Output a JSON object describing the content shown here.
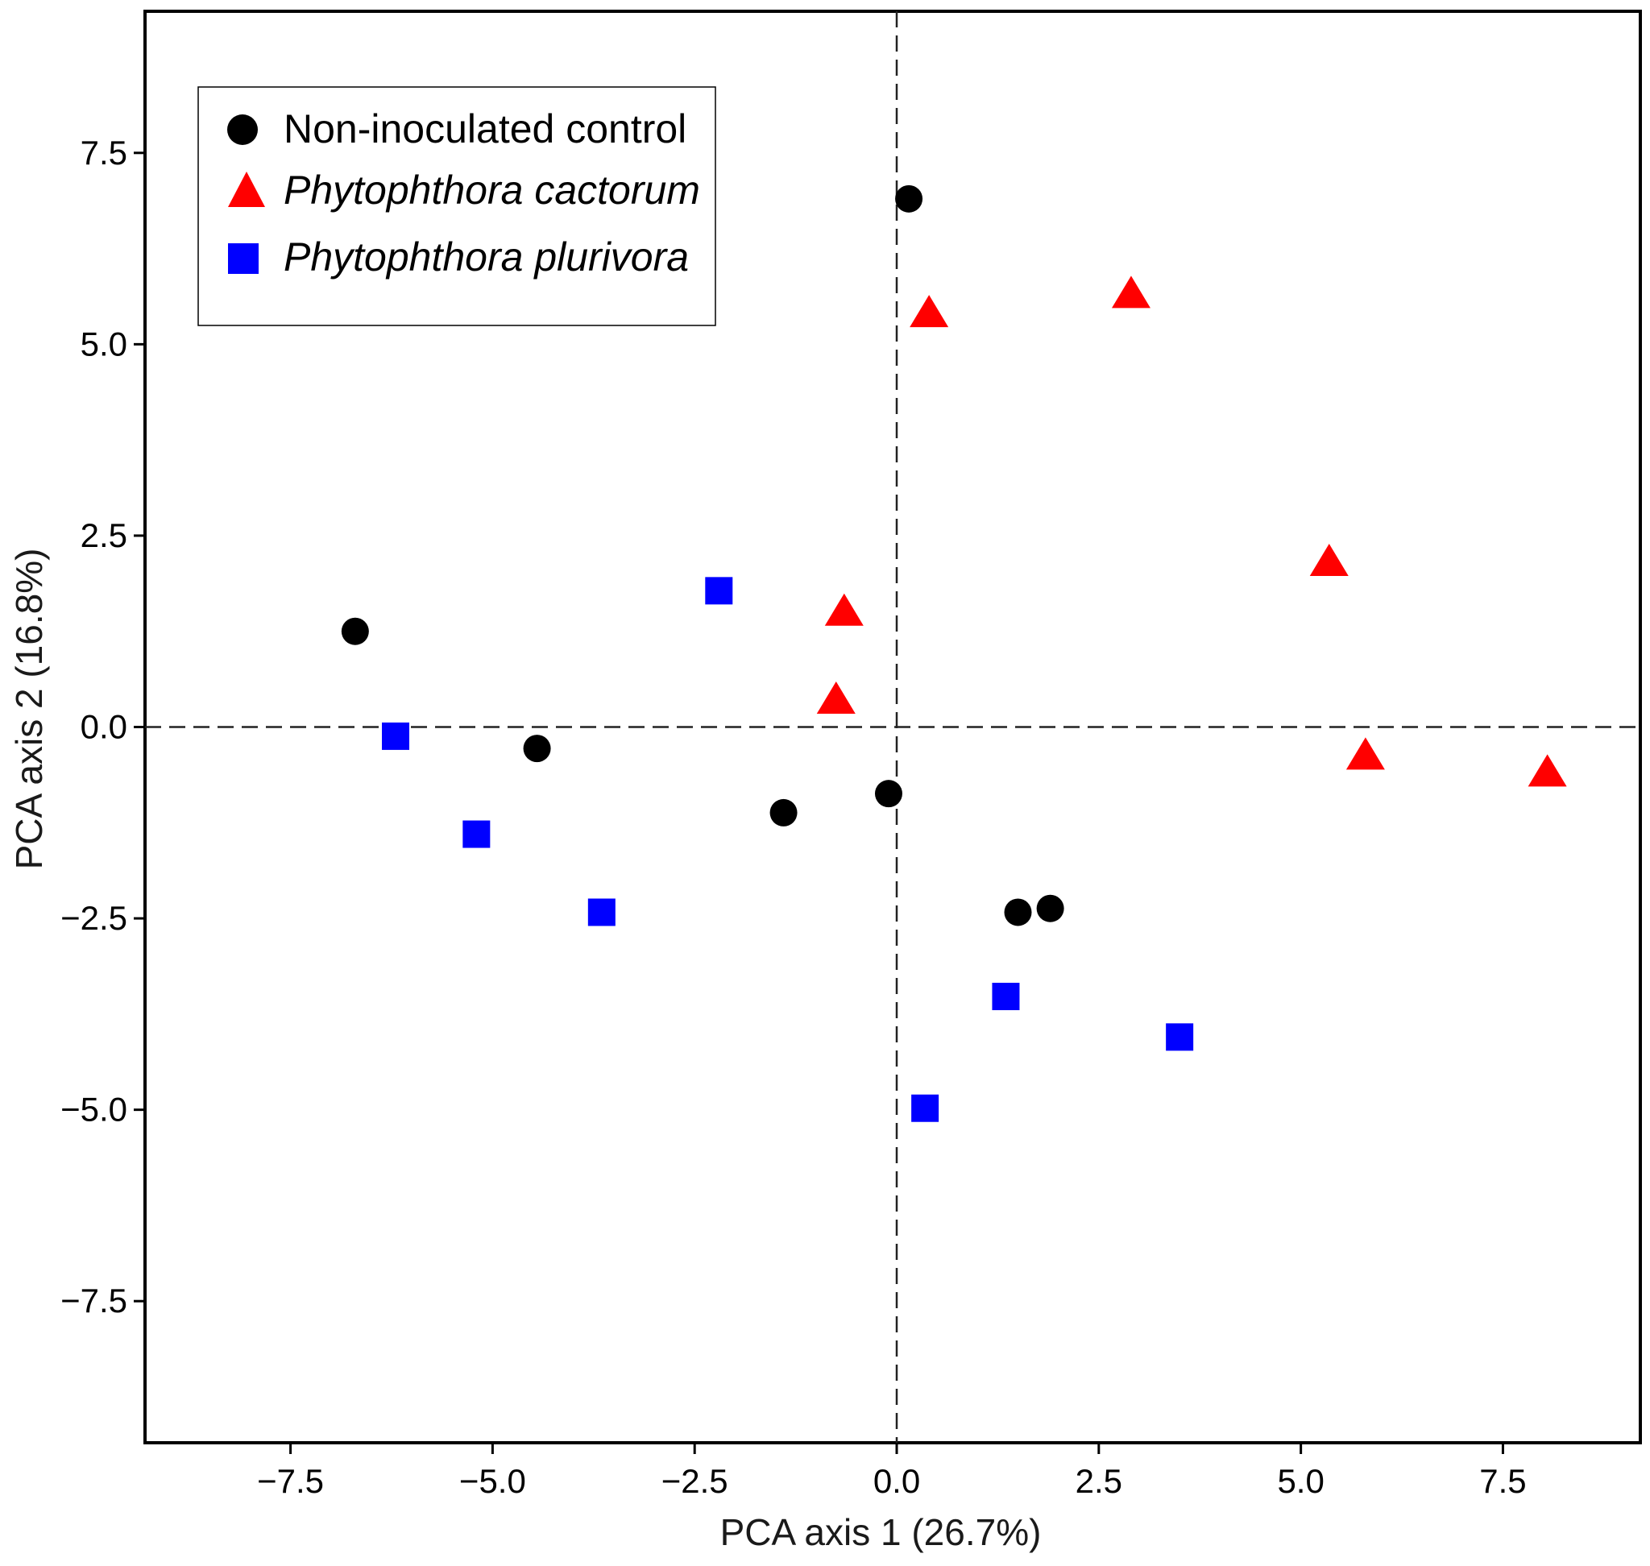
{
  "chart_data": {
    "type": "scatter",
    "xlabel": "PCA axis 1 (26.7%)",
    "ylabel": "PCA axis 2 (16.8%)",
    "xlim": [
      -9.3,
      9.2
    ],
    "ylim": [
      -9.35,
      9.35
    ],
    "x_ticks": [
      -7.5,
      -5.0,
      -2.5,
      0.0,
      2.5,
      5.0,
      7.5
    ],
    "x_tick_labels": [
      "−7.5",
      "−5.0",
      "−2.5",
      "0.0",
      "2.5",
      "5.0",
      "7.5"
    ],
    "y_ticks": [
      7.5,
      5.0,
      2.5,
      0.0,
      -2.5,
      -5.0,
      -7.5
    ],
    "y_tick_labels": [
      "7.5",
      "5.0",
      "2.5",
      "0.0",
      "−2.5",
      "−5.0",
      "−7.5"
    ],
    "reference_lines": {
      "x": 0.0,
      "y": 0.0,
      "style": "dashed"
    },
    "grid": false,
    "legend_position": "top-left",
    "series": [
      {
        "name": "Non-inoculated control",
        "italic": false,
        "marker": "circle",
        "color": "#000000",
        "points": [
          [
            0.15,
            6.9
          ],
          [
            -6.7,
            1.25
          ],
          [
            -4.45,
            -0.28
          ],
          [
            -1.4,
            -1.12
          ],
          [
            -0.1,
            -0.87
          ],
          [
            1.5,
            -2.42
          ],
          [
            1.9,
            -2.37
          ]
        ]
      },
      {
        "name": "Phytophthora cactorum",
        "italic": true,
        "marker": "triangle",
        "color": "#ff0000",
        "points": [
          [
            0.4,
            5.4
          ],
          [
            2.9,
            5.65
          ],
          [
            -0.65,
            1.5
          ],
          [
            -0.75,
            0.35
          ],
          [
            5.35,
            2.15
          ],
          [
            5.8,
            -0.38
          ],
          [
            8.05,
            -0.6
          ]
        ]
      },
      {
        "name": "Phytophthora plurivora",
        "italic": true,
        "marker": "square",
        "color": "#0000ff",
        "points": [
          [
            -2.2,
            1.78
          ],
          [
            -6.2,
            -0.12
          ],
          [
            -5.2,
            -1.4
          ],
          [
            -3.65,
            -2.42
          ],
          [
            1.35,
            -3.52
          ],
          [
            3.5,
            -4.05
          ],
          [
            0.35,
            -4.98
          ]
        ]
      }
    ]
  }
}
